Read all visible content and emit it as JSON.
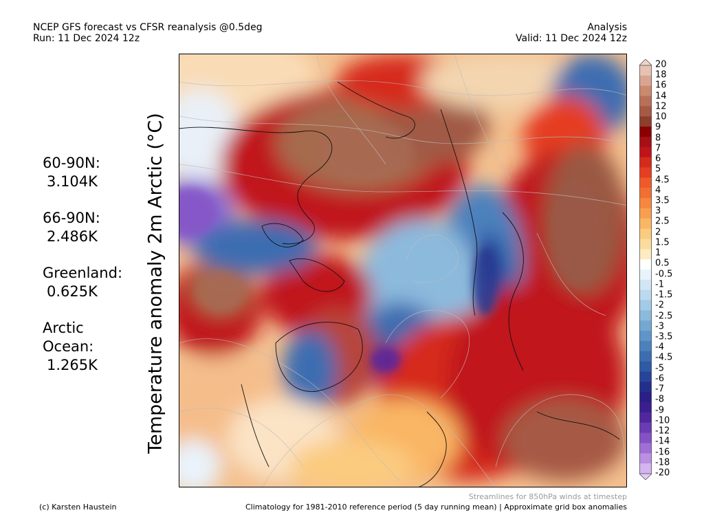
{
  "header": {
    "title": "NCEP GFS forecast vs CFSR reanalysis @0.5deg",
    "run": "Run: 11 Dec 2024 12z",
    "mode": "Analysis",
    "valid": "Valid: 11 Dec 2024 12z"
  },
  "axis_title": "Temperature anomaly 2m Arctic (°C)",
  "stats": [
    {
      "label": "60-90N:",
      "value": "3.104K"
    },
    {
      "label": "66-90N:",
      "value": "2.486K"
    },
    {
      "label": "Greenland:",
      "value": "0.625K"
    },
    {
      "label": "Arctic Ocean:",
      "value": "1.265K"
    }
  ],
  "colorbar": {
    "labels": [
      "20",
      "18",
      "16",
      "14",
      "12",
      "10",
      "9",
      "8",
      "7",
      "6",
      "5",
      "4.5",
      "4",
      "3.5",
      "3",
      "2.5",
      "2",
      "1.5",
      "1",
      "0.5",
      "-0.5",
      "-1",
      "-1.5",
      "-2",
      "-2.5",
      "-3",
      "-3.5",
      "-4",
      "-4.5",
      "-5",
      "-6",
      "-7",
      "-8",
      "-9",
      "-10",
      "-12",
      "-14",
      "-16",
      "-18",
      "-20"
    ],
    "colors": [
      "#e6c2b4",
      "#d9a590",
      "#c98a6e",
      "#b87058",
      "#a65a44",
      "#8c3f2c",
      "#8b0000",
      "#a50f15",
      "#c0141a",
      "#d62a1c",
      "#e53e22",
      "#ef5a28",
      "#f26f34",
      "#f5873f",
      "#f79f4e",
      "#f9b665",
      "#fbcb80",
      "#fcdc9e",
      "#fdebc2",
      "#ffffff",
      "#e9f3fb",
      "#d2e6f5",
      "#bcd9ee",
      "#a3cae6",
      "#8cbadd",
      "#74a8d3",
      "#5f95c8",
      "#4c81bd",
      "#3d6db1",
      "#2f5aa5",
      "#27449a",
      "#22308c",
      "#2b1f87",
      "#3c1f8e",
      "#5127a0",
      "#6a3bb4",
      "#8552c6",
      "#a06ed4",
      "#bb90e2",
      "#d5b5ef"
    ]
  },
  "footer": {
    "streamlines_note": "Streamlines for 850hPa winds at timestep",
    "credit": "(c) Karsten Haustein",
    "climatology": "Climatology for 1981-2010 reference period (5 day running mean) | Approximate grid box anomalies"
  }
}
